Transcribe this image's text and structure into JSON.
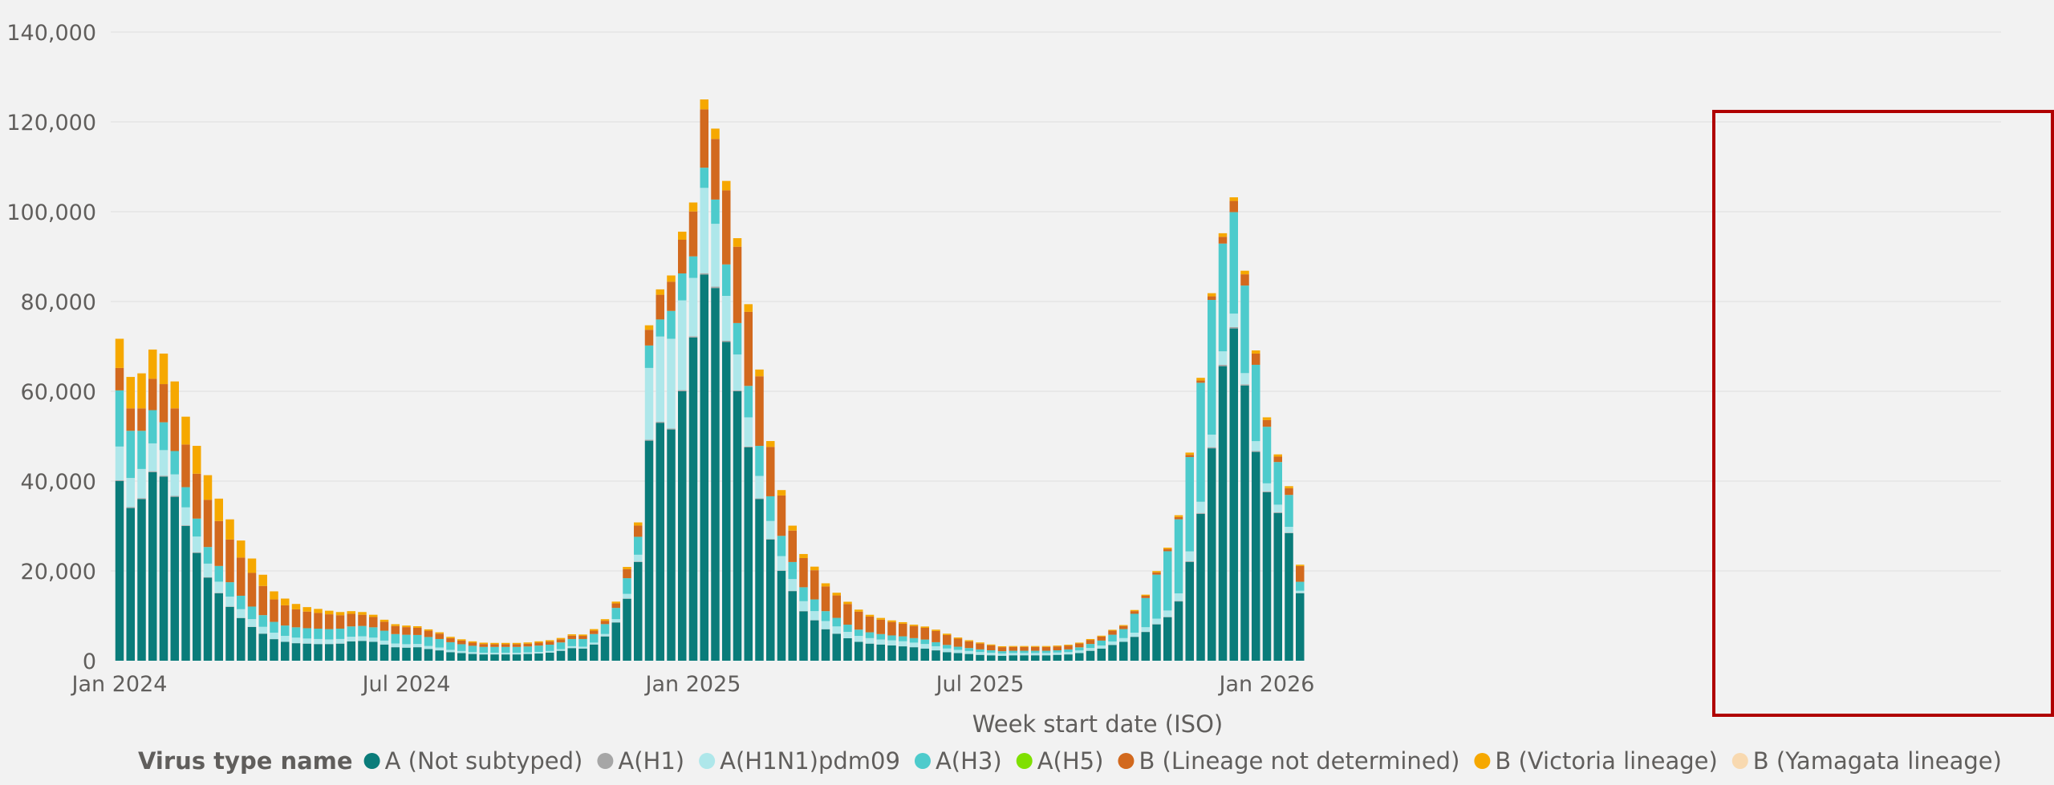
{
  "chart_data": {
    "type": "bar",
    "stacked": true,
    "xlabel": "Week start date (ISO)",
    "ylabel": "",
    "ylim": [
      0,
      140000
    ],
    "yticks": [
      0,
      20000,
      40000,
      60000,
      80000,
      100000,
      120000,
      140000
    ],
    "ytick_labels": [
      "0",
      "20,000",
      "40,000",
      "60,000",
      "80,000",
      "100,000",
      "120,000",
      "140,000"
    ],
    "xtick_labels": [
      {
        "label": "Jan 2024",
        "week_start": "2024-01-01"
      },
      {
        "label": "Jul 2024",
        "week_start": "2024-07-01"
      },
      {
        "label": "Jan 2025",
        "week_start": "2024-12-30"
      },
      {
        "label": "Jul 2025",
        "week_start": "2025-06-30"
      },
      {
        "label": "Jan 2026",
        "week_start": "2025-12-29"
      }
    ],
    "first_week_start": "2024-01-01",
    "week_interval_days": 7,
    "grid": true,
    "legend": {
      "title": "Virus type name",
      "position": "bottom",
      "entries": [
        {
          "name": "A (Not subtyped)",
          "color": "#0a7c7a"
        },
        {
          "name": "A(H1)",
          "color": "#a6a6a6"
        },
        {
          "name": "A(H1N1)pdm09",
          "color": "#aee7ea"
        },
        {
          "name": "A(H3)",
          "color": "#4dcbcc"
        },
        {
          "name": "A(H5)",
          "color": "#7fe000"
        },
        {
          "name": "B (Lineage not determined)",
          "color": "#d2691e"
        },
        {
          "name": "B (Victoria lineage)",
          "color": "#f6a800"
        },
        {
          "name": "B (Yamagata lineage)",
          "color": "#f8d9b0"
        }
      ]
    },
    "highlight": {
      "from_week": 9,
      "to_week": 5,
      "from_year": 2025,
      "to_year": 2026,
      "color": "#b00000"
    },
    "series": [
      {
        "name": "A (Not subtyped)",
        "values": [
          40000,
          34000,
          36000,
          42000,
          41000,
          36500,
          30000,
          24000,
          18500,
          15000,
          12000,
          9500,
          7500,
          6000,
          4800,
          4200,
          3900,
          3800,
          3700,
          3700,
          3800,
          4300,
          4400,
          4200,
          3600,
          3000,
          2900,
          3000,
          2600,
          2300,
          1900,
          1700,
          1500,
          1400,
          1400,
          1400,
          1400,
          1500,
          1600,
          1800,
          2200,
          2800,
          2700,
          3600,
          5400,
          8500,
          13800,
          22000,
          49000,
          53000,
          51500,
          60000,
          72000,
          86000,
          83000,
          71000,
          60000,
          47500,
          36000,
          27000,
          20000,
          15500,
          11000,
          9000,
          7000,
          6000,
          5000,
          4200,
          3800,
          3600,
          3400,
          3200,
          3000,
          2700,
          2300,
          1900,
          1700,
          1500,
          1300,
          1200,
          1100,
          1200,
          1200,
          1200,
          1200,
          1300,
          1400,
          1700,
          2200,
          2700,
          3500,
          4200,
          5300,
          6400,
          8100,
          9700,
          13200,
          22000,
          32700,
          47300,
          65600,
          74000,
          61300,
          46500,
          37500,
          32900,
          28400,
          15000
        ]
      },
      {
        "name": "A(H1)",
        "values": [
          200,
          200,
          200,
          200,
          200,
          200,
          150,
          150,
          120,
          100,
          80,
          70,
          60,
          50,
          50,
          40,
          40,
          40,
          40,
          40,
          40,
          40,
          40,
          40,
          30,
          30,
          30,
          30,
          30,
          30,
          20,
          20,
          20,
          20,
          20,
          20,
          20,
          20,
          20,
          20,
          20,
          30,
          30,
          40,
          50,
          60,
          80,
          100,
          200,
          200,
          200,
          250,
          250,
          300,
          300,
          250,
          200,
          200,
          150,
          120,
          100,
          80,
          60,
          50,
          40,
          40,
          30,
          30,
          30,
          30,
          30,
          30,
          30,
          20,
          20,
          20,
          20,
          20,
          20,
          20,
          20,
          20,
          20,
          20,
          20,
          20,
          20,
          30,
          30,
          30,
          40,
          40,
          50,
          60,
          70,
          80,
          100,
          150,
          200,
          250,
          300,
          300,
          250,
          200,
          200,
          150,
          120,
          80
        ]
      },
      {
        "name": "A(H1N1)pdm09",
        "values": [
          7500,
          6500,
          6500,
          6200,
          5700,
          4800,
          4000,
          3500,
          3000,
          2500,
          2200,
          1900,
          1700,
          1500,
          1400,
          1300,
          1200,
          1100,
          1100,
          1000,
          1000,
          1000,
          1000,
          900,
          850,
          800,
          750,
          700,
          650,
          600,
          500,
          450,
          400,
          350,
          350,
          350,
          350,
          350,
          350,
          350,
          350,
          400,
          400,
          400,
          500,
          700,
          1000,
          1500,
          16000,
          19000,
          20000,
          20000,
          13000,
          19000,
          14000,
          10000,
          8000,
          6500,
          5000,
          4000,
          3200,
          2600,
          2200,
          2000,
          1800,
          1600,
          1400,
          1300,
          1200,
          1100,
          1100,
          1100,
          1000,
          1000,
          900,
          800,
          700,
          650,
          600,
          550,
          500,
          500,
          500,
          500,
          500,
          500,
          500,
          550,
          600,
          650,
          750,
          800,
          900,
          1000,
          1200,
          1400,
          1700,
          2200,
          2500,
          2800,
          3000,
          3000,
          2500,
          2200,
          1800,
          1700,
          1300,
          500
        ]
      },
      {
        "name": "A(H3)",
        "values": [
          12500,
          10500,
          8500,
          7400,
          6200,
          5200,
          4500,
          4000,
          3700,
          3500,
          3200,
          3000,
          2800,
          2600,
          2400,
          2300,
          2300,
          2300,
          2300,
          2300,
          2300,
          2300,
          2300,
          2300,
          2200,
          2100,
          2100,
          2000,
          2000,
          1900,
          1700,
          1500,
          1400,
          1300,
          1300,
          1300,
          1300,
          1300,
          1400,
          1400,
          1500,
          1600,
          1700,
          1900,
          2200,
          2500,
          3500,
          4000,
          5000,
          3800,
          6200,
          6000,
          4800,
          4500,
          5400,
          7000,
          7000,
          7000,
          6700,
          5500,
          4500,
          3800,
          3100,
          2600,
          2200,
          1900,
          1600,
          1400,
          1300,
          1200,
          1100,
          1100,
          1000,
          1000,
          900,
          800,
          700,
          650,
          600,
          550,
          500,
          500,
          500,
          500,
          500,
          500,
          600,
          700,
          900,
          1100,
          1500,
          2000,
          4200,
          6500,
          9800,
          13200,
          16500,
          21000,
          26500,
          30000,
          24000,
          22600,
          19500,
          17000,
          12600,
          9500,
          7100,
          2000
        ]
      },
      {
        "name": "A(H5)",
        "values": [
          0,
          0,
          0,
          0,
          0,
          0,
          0,
          0,
          0,
          0,
          0,
          0,
          0,
          0,
          0,
          0,
          0,
          0,
          0,
          0,
          0,
          0,
          0,
          0,
          0,
          0,
          0,
          0,
          0,
          0,
          0,
          0,
          0,
          0,
          0,
          0,
          0,
          0,
          0,
          0,
          0,
          0,
          0,
          0,
          0,
          0,
          0,
          0,
          0,
          0,
          0,
          0,
          0,
          0,
          0,
          0,
          0,
          0,
          0,
          0,
          0,
          0,
          0,
          0,
          0,
          0,
          0,
          0,
          0,
          0,
          0,
          0,
          0,
          0,
          0,
          0,
          0,
          0,
          0,
          0,
          0,
          0,
          0,
          0,
          0,
          0,
          0,
          0,
          0,
          0,
          0,
          0,
          0,
          0,
          0,
          0,
          0,
          0,
          0,
          0,
          0,
          0,
          0,
          0,
          0,
          0,
          0,
          0
        ]
      },
      {
        "name": "B (Lineage not determined)",
        "values": [
          5000,
          5000,
          5000,
          7000,
          8500,
          9500,
          9500,
          10000,
          10500,
          10000,
          9500,
          8500,
          7500,
          6500,
          5000,
          4500,
          4000,
          3700,
          3500,
          3300,
          3000,
          2800,
          2500,
          2300,
          2000,
          1800,
          1700,
          1600,
          1400,
          1200,
          900,
          800,
          700,
          650,
          600,
          600,
          600,
          600,
          650,
          700,
          700,
          750,
          700,
          750,
          750,
          1000,
          2000,
          2500,
          3500,
          5500,
          6500,
          7500,
          10000,
          13000,
          13500,
          16500,
          17000,
          16500,
          15500,
          11000,
          9000,
          7000,
          6500,
          6500,
          5500,
          5000,
          4600,
          4000,
          3500,
          3200,
          3000,
          2800,
          2700,
          2600,
          2500,
          2200,
          1800,
          1500,
          1300,
          1100,
          900,
          850,
          850,
          850,
          850,
          850,
          850,
          850,
          900,
          900,
          900,
          700,
          600,
          500,
          500,
          500,
          500,
          500,
          500,
          800,
          1500,
          2500,
          2500,
          2500,
          1500,
          1200,
          1500,
          3500,
          600
        ]
      },
      {
        "name": "B (Victoria lineage)",
        "values": [
          6500,
          7000,
          7800,
          6500,
          6800,
          6000,
          6200,
          6200,
          5500,
          5000,
          4500,
          3800,
          3200,
          2500,
          1800,
          1500,
          1200,
          1000,
          900,
          800,
          700,
          600,
          600,
          500,
          450,
          400,
          350,
          350,
          300,
          300,
          300,
          300,
          300,
          300,
          300,
          300,
          300,
          300,
          300,
          300,
          300,
          300,
          300,
          350,
          350,
          400,
          500,
          700,
          1000,
          1200,
          1400,
          1800,
          2000,
          2200,
          2300,
          2100,
          1900,
          1700,
          1500,
          1300,
          1200,
          1100,
          900,
          800,
          700,
          600,
          500,
          450,
          400,
          400,
          350,
          350,
          300,
          300,
          300,
          300,
          250,
          250,
          250,
          200,
          200,
          200,
          200,
          200,
          200,
          200,
          200,
          200,
          200,
          200,
          200,
          200,
          250,
          250,
          300,
          300,
          400,
          500,
          600,
          700,
          800,
          800,
          800,
          700,
          600,
          500,
          450,
          300
        ]
      },
      {
        "name": "B (Yamagata lineage)",
        "values": [
          0,
          0,
          0,
          0,
          0,
          0,
          0,
          0,
          0,
          0,
          0,
          0,
          0,
          0,
          0,
          0,
          0,
          0,
          0,
          0,
          0,
          0,
          0,
          0,
          0,
          0,
          0,
          0,
          0,
          0,
          0,
          0,
          0,
          0,
          0,
          0,
          0,
          0,
          0,
          0,
          0,
          0,
          0,
          0,
          0,
          0,
          0,
          0,
          0,
          0,
          0,
          0,
          0,
          0,
          0,
          0,
          0,
          0,
          0,
          0,
          0,
          0,
          0,
          0,
          0,
          0,
          0,
          0,
          0,
          0,
          0,
          0,
          0,
          0,
          0,
          0,
          0,
          0,
          0,
          0,
          0,
          0,
          0,
          0,
          0,
          0,
          0,
          0,
          0,
          0,
          0,
          0,
          0,
          0,
          0,
          0,
          0,
          0,
          0,
          0,
          0,
          0,
          0,
          0,
          0,
          0,
          0,
          0
        ]
      }
    ]
  }
}
